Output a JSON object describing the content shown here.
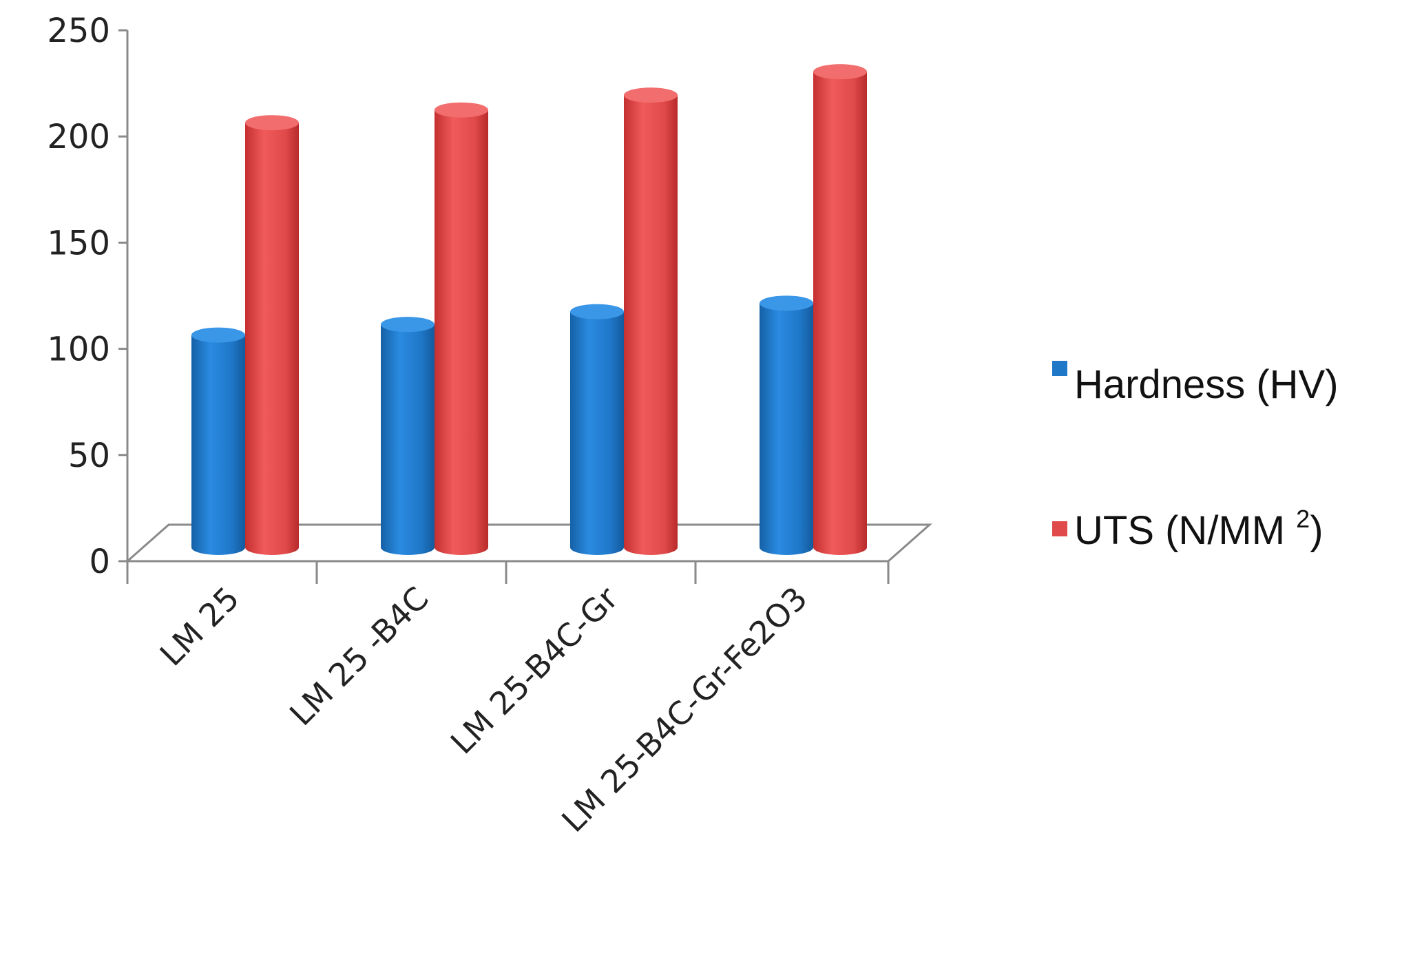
{
  "chart_data": {
    "type": "bar",
    "categories": [
      "LM 25",
      "LM 25 -B4C",
      "LM 25-B4C-Gr",
      "LM 25-B4C-Gr-Fe2O3"
    ],
    "series": [
      {
        "name": "Hardness (HV)",
        "values": [
          100,
          105,
          111,
          115
        ],
        "color": "#1f77c8"
      },
      {
        "name": "UTS (N/MM 2)",
        "values": [
          200,
          206,
          213,
          224
        ],
        "color": "#e04a4a"
      }
    ],
    "legend": {
      "position": "right",
      "items": [
        {
          "label": "Hardness (HV)",
          "color": "#1f77c8"
        },
        {
          "label_main": "UTS (N/MM ",
          "label_sup": "2",
          "label_end": ")",
          "color": "#e04a4a"
        }
      ]
    },
    "ylim": [
      0,
      250
    ],
    "yticks": [
      "0",
      "50",
      "100",
      "150",
      "200",
      "250"
    ],
    "style": "3d-cylinder",
    "grid": false
  }
}
